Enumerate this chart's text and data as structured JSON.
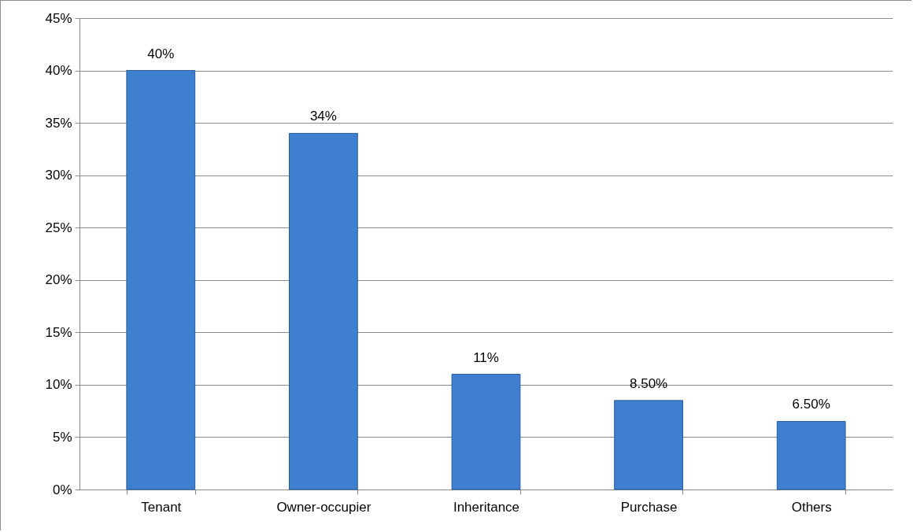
{
  "chart_data": {
    "type": "bar",
    "categories": [
      "Tenant",
      "Owner-occupier",
      "Inheritance",
      "Purchase",
      "Others"
    ],
    "values": [
      40,
      34,
      11,
      8.5,
      6.5
    ],
    "value_labels": [
      "40%",
      "34%",
      "11%",
      "8.50%",
      "6.50%"
    ],
    "color": "#3f7fcf",
    "ylim": [
      0,
      45
    ],
    "yticks": [
      {
        "value": 0,
        "label": "0%"
      },
      {
        "value": 5,
        "label": "5%"
      },
      {
        "value": 10,
        "label": "10%"
      },
      {
        "value": 15,
        "label": "15%"
      },
      {
        "value": 20,
        "label": "20%"
      },
      {
        "value": 25,
        "label": "25%"
      },
      {
        "value": 30,
        "label": "30%"
      },
      {
        "value": 35,
        "label": "35%"
      },
      {
        "value": 40,
        "label": "40%"
      },
      {
        "value": 45,
        "label": "45%"
      }
    ],
    "grid": "y"
  }
}
